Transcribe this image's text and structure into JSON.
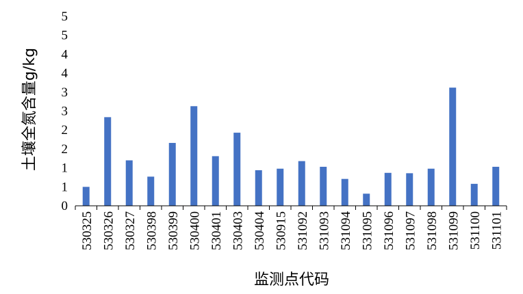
{
  "chart_data": {
    "type": "bar",
    "xlabel": "监测点代码",
    "ylabel": "土壤全氮含量g/kg",
    "ylim": [
      0,
      5
    ],
    "y_tick_labels": [
      "0",
      "1",
      "1",
      "2",
      "2",
      "3",
      "3",
      "4",
      "4",
      "5",
      "5"
    ],
    "categories": [
      "530325",
      "530326",
      "530327",
      "530398",
      "530399",
      "530400",
      "530401",
      "530403",
      "530404",
      "530915",
      "531092",
      "531093",
      "531094",
      "531095",
      "531096",
      "531097",
      "531098",
      "531099",
      "531100",
      "531101"
    ],
    "values": [
      0.5,
      2.34,
      1.2,
      0.77,
      1.66,
      2.63,
      1.31,
      1.93,
      0.94,
      0.98,
      1.18,
      1.03,
      0.71,
      0.32,
      0.87,
      0.86,
      0.98,
      3.12,
      0.58,
      1.03
    ],
    "bar_color": "#4472C4",
    "grid": false,
    "legend": "none"
  }
}
